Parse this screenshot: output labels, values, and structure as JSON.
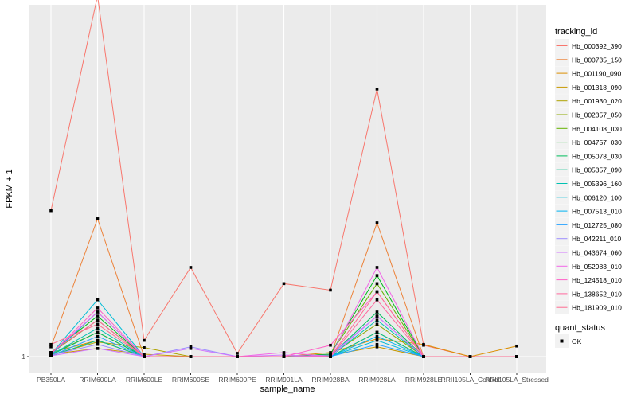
{
  "chart_data": {
    "type": "line",
    "xlabel": "sample_name",
    "ylabel": "FPKM + 1",
    "y_ticks": [
      "1"
    ],
    "ylim": [
      1,
      5.3
    ],
    "categories": [
      "PB350LA",
      "RRIM600LA",
      "RRIM600LE",
      "RRIM600SE",
      "RRIM600PE",
      "RRIM901LA",
      "RRIM928BA",
      "RRIM928LA",
      "RRIM928LE",
      "RRII105LA_Control",
      "RRII105LA_Stressed"
    ],
    "legend_title": "tracking_id",
    "legend_position": "right",
    "grid": true,
    "series": [
      {
        "name": "Hb_000392_390",
        "color": "#F8766D",
        "values": [
          2.8,
          5.45,
          1.2,
          2.1,
          1.04,
          1.9,
          1.82,
          4.3,
          1.14,
          1.0,
          1.0
        ]
      },
      {
        "name": "Hb_000735_150",
        "color": "#EC8239",
        "values": [
          1.12,
          2.7,
          1.0,
          1.0,
          1.0,
          1.0,
          1.0,
          2.65,
          1.0,
          1.0,
          1.0
        ]
      },
      {
        "name": "Hb_001190_090",
        "color": "#DB8E00",
        "values": [
          1.05,
          1.2,
          1.0,
          1.0,
          1.0,
          1.0,
          1.05,
          1.22,
          1.15,
          1.0,
          1.13
        ]
      },
      {
        "name": "Hb_001318_090",
        "color": "#C79800",
        "values": [
          1.03,
          1.1,
          1.03,
          1.0,
          1.0,
          1.0,
          1.02,
          1.12,
          1.0,
          1.0,
          1.0
        ]
      },
      {
        "name": "Hb_001930_020",
        "color": "#AEA200",
        "values": [
          1.02,
          1.18,
          1.11,
          1.0,
          1.0,
          1.0,
          1.0,
          1.3,
          1.0,
          1.0,
          1.0
        ]
      },
      {
        "name": "Hb_002357_050",
        "color": "#8FAA00",
        "values": [
          1.03,
          1.3,
          1.0,
          1.0,
          1.0,
          1.0,
          1.02,
          1.4,
          1.0,
          1.0,
          1.0
        ]
      },
      {
        "name": "Hb_004108_030",
        "color": "#64B200",
        "values": [
          1.04,
          1.45,
          1.0,
          1.0,
          1.0,
          1.0,
          1.03,
          1.9,
          1.0,
          1.0,
          1.0
        ]
      },
      {
        "name": "Hb_004757_030",
        "color": "#00B81B",
        "values": [
          1.05,
          1.5,
          1.0,
          1.0,
          1.0,
          1.0,
          1.03,
          2.0,
          1.0,
          1.0,
          1.0
        ]
      },
      {
        "name": "Hb_005078_030",
        "color": "#00BD5C",
        "values": [
          1.02,
          1.3,
          1.0,
          1.0,
          1.0,
          1.0,
          1.01,
          1.55,
          1.0,
          1.0,
          1.0
        ]
      },
      {
        "name": "Hb_005357_090",
        "color": "#00C08B",
        "values": [
          1.01,
          1.2,
          1.0,
          1.0,
          1.0,
          1.0,
          1.0,
          1.3,
          1.0,
          1.0,
          1.0
        ]
      },
      {
        "name": "Hb_005396_160",
        "color": "#00C1B2",
        "values": [
          1.02,
          1.35,
          1.0,
          1.0,
          1.0,
          1.0,
          1.0,
          1.45,
          1.0,
          1.0,
          1.0
        ]
      },
      {
        "name": "Hb_006120_100",
        "color": "#00BCD6",
        "values": [
          1.03,
          1.7,
          1.0,
          1.0,
          1.0,
          1.0,
          1.0,
          1.2,
          1.0,
          1.0,
          1.0
        ]
      },
      {
        "name": "Hb_007513_010",
        "color": "#00B3F2",
        "values": [
          1.02,
          1.55,
          1.0,
          1.0,
          1.0,
          1.0,
          1.0,
          1.25,
          1.0,
          1.0,
          1.0
        ]
      },
      {
        "name": "Hb_012725_080",
        "color": "#29A3FF",
        "values": [
          1.01,
          1.25,
          1.0,
          1.0,
          1.0,
          1.0,
          1.0,
          1.15,
          1.0,
          1.0,
          1.0
        ]
      },
      {
        "name": "Hb_042211_010",
        "color": "#9C8DFF",
        "values": [
          1.02,
          1.15,
          1.0,
          1.12,
          1.0,
          1.0,
          1.02,
          1.5,
          1.0,
          1.0,
          1.0
        ]
      },
      {
        "name": "Hb_043674_060",
        "color": "#D277FF",
        "values": [
          1.01,
          1.1,
          1.0,
          1.1,
          1.0,
          1.02,
          1.0,
          1.5,
          1.0,
          1.0,
          1.0
        ]
      },
      {
        "name": "Hb_052983_010",
        "color": "#F166E8",
        "values": [
          1.04,
          1.55,
          1.0,
          1.0,
          1.0,
          1.05,
          1.0,
          2.1,
          1.0,
          1.0,
          1.0
        ]
      },
      {
        "name": "Hb_124518_010",
        "color": "#FF61C7",
        "values": [
          1.03,
          1.6,
          1.0,
          1.0,
          1.0,
          1.0,
          1.14,
          1.8,
          1.0,
          1.0,
          1.0
        ]
      },
      {
        "name": "Hb_138652_010",
        "color": "#FF689E",
        "values": [
          1.05,
          1.45,
          1.0,
          1.0,
          1.0,
          1.0,
          1.0,
          1.7,
          1.0,
          1.0,
          1.0
        ]
      },
      {
        "name": "Hb_181909_010",
        "color": "#FF6C91",
        "values": [
          1.15,
          1.4,
          1.0,
          1.0,
          1.0,
          1.0,
          1.0,
          1.8,
          1.0,
          1.0,
          1.0
        ]
      }
    ],
    "shape_legend_title": "quant_status",
    "shape_legend_items": [
      "OK"
    ]
  }
}
